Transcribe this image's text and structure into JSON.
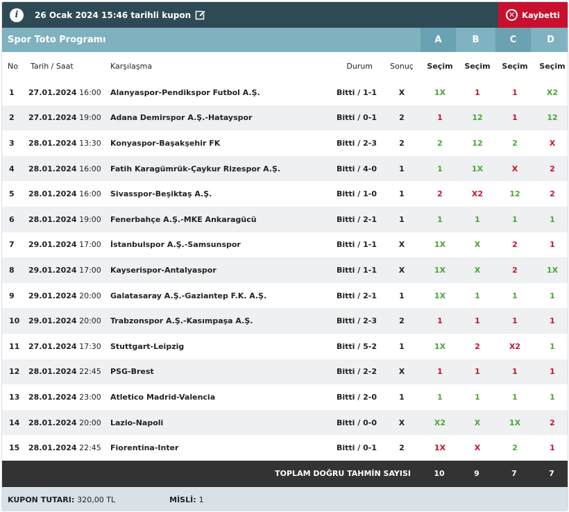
{
  "header": {
    "coupon_title": "26 Ocak 2024 15:46 tarihli kupon",
    "status_label": "Kaybetti",
    "status_color": "#c8102e"
  },
  "program": {
    "title": "Spor Toto Programı",
    "columns": [
      "A",
      "B",
      "C",
      "D"
    ]
  },
  "table_headers": {
    "no": "No",
    "date": "Tarih / Saat",
    "match": "Karşılaşma",
    "status": "Durum",
    "result": "Sonuç",
    "sel": "Seçim"
  },
  "rows": [
    {
      "no": "1",
      "date": "27.01.2024",
      "time": "16:00",
      "match": "Alanyaspor-Pendikspor Futbol A.Ş.",
      "status": "Bitti / 1-1",
      "result": "X",
      "sel": [
        "1X",
        "1",
        "1",
        "X2"
      ],
      "ok": [
        true,
        false,
        false,
        true
      ]
    },
    {
      "no": "2",
      "date": "27.01.2024",
      "time": "19:00",
      "match": "Adana Demirspor A.Ş.-Hatayspor",
      "status": "Bitti / 0-1",
      "result": "2",
      "sel": [
        "1",
        "12",
        "1",
        "12"
      ],
      "ok": [
        false,
        true,
        false,
        true
      ]
    },
    {
      "no": "3",
      "date": "28.01.2024",
      "time": "13:30",
      "match": "Konyaspor-Başakşehir FK",
      "status": "Bitti / 2-3",
      "result": "2",
      "sel": [
        "2",
        "12",
        "2",
        "X"
      ],
      "ok": [
        true,
        true,
        true,
        false
      ]
    },
    {
      "no": "4",
      "date": "28.01.2024",
      "time": "16:00",
      "match": "Fatih Karagümrük-Çaykur Rizespor A.Ş.",
      "status": "Bitti / 4-0",
      "result": "1",
      "sel": [
        "1",
        "1X",
        "X",
        "2"
      ],
      "ok": [
        true,
        true,
        false,
        false
      ]
    },
    {
      "no": "5",
      "date": "28.01.2024",
      "time": "16:00",
      "match": "Sivasspor-Beşiktaş A.Ş.",
      "status": "Bitti / 1-0",
      "result": "1",
      "sel": [
        "2",
        "X2",
        "12",
        "2"
      ],
      "ok": [
        false,
        false,
        true,
        false
      ]
    },
    {
      "no": "6",
      "date": "28.01.2024",
      "time": "19:00",
      "match": "Fenerbahçe A.Ş.-MKE Ankaragücü",
      "status": "Bitti / 2-1",
      "result": "1",
      "sel": [
        "1",
        "1",
        "1",
        "1"
      ],
      "ok": [
        true,
        true,
        true,
        true
      ]
    },
    {
      "no": "7",
      "date": "29.01.2024",
      "time": "17:00",
      "match": "İstanbulspor A.Ş.-Samsunspor",
      "status": "Bitti / 1-1",
      "result": "X",
      "sel": [
        "1X",
        "X",
        "2",
        "1"
      ],
      "ok": [
        true,
        true,
        false,
        false
      ]
    },
    {
      "no": "8",
      "date": "29.01.2024",
      "time": "17:00",
      "match": "Kayserispor-Antalyaspor",
      "status": "Bitti / 1-1",
      "result": "X",
      "sel": [
        "1X",
        "X",
        "2",
        "1X"
      ],
      "ok": [
        true,
        true,
        false,
        true
      ]
    },
    {
      "no": "9",
      "date": "29.01.2024",
      "time": "20:00",
      "match": "Galatasaray A.Ş.-Gaziantep F.K. A.Ş.",
      "status": "Bitti / 2-1",
      "result": "1",
      "sel": [
        "1X",
        "1",
        "1",
        "1"
      ],
      "ok": [
        true,
        true,
        true,
        true
      ]
    },
    {
      "no": "10",
      "date": "29.01.2024",
      "time": "20:00",
      "match": "Trabzonspor A.Ş.-Kasımpaşa A.Ş.",
      "status": "Bitti / 2-3",
      "result": "2",
      "sel": [
        "1",
        "1",
        "1",
        "1"
      ],
      "ok": [
        false,
        false,
        false,
        false
      ]
    },
    {
      "no": "11",
      "date": "27.01.2024",
      "time": "17:30",
      "match": "Stuttgart-Leipzig",
      "status": "Bitti / 5-2",
      "result": "1",
      "sel": [
        "1X",
        "2",
        "X2",
        "1"
      ],
      "ok": [
        true,
        false,
        false,
        true
      ]
    },
    {
      "no": "12",
      "date": "28.01.2024",
      "time": "22:45",
      "match": "PSG-Brest",
      "status": "Bitti / 2-2",
      "result": "X",
      "sel": [
        "1",
        "1",
        "1",
        "1"
      ],
      "ok": [
        false,
        false,
        false,
        false
      ]
    },
    {
      "no": "13",
      "date": "28.01.2024",
      "time": "23:00",
      "match": "Atletico Madrid-Valencia",
      "status": "Bitti / 2-0",
      "result": "1",
      "sel": [
        "1",
        "1",
        "1",
        "1"
      ],
      "ok": [
        true,
        true,
        true,
        true
      ]
    },
    {
      "no": "14",
      "date": "28.01.2024",
      "time": "20:00",
      "match": "Lazio-Napoli",
      "status": "Bitti / 0-0",
      "result": "X",
      "sel": [
        "X2",
        "X",
        "1X",
        "2"
      ],
      "ok": [
        true,
        true,
        true,
        false
      ]
    },
    {
      "no": "15",
      "date": "28.01.2024",
      "time": "22:45",
      "match": "Fiorentina-Inter",
      "status": "Bitti / 0-1",
      "result": "2",
      "sel": [
        "1X",
        "X",
        "2",
        "1"
      ],
      "ok": [
        false,
        false,
        true,
        false
      ]
    }
  ],
  "totals": {
    "label": "TOPLAM DOĞRU TAHMİN SAYISI",
    "values": [
      "10",
      "9",
      "7",
      "7"
    ]
  },
  "footer": {
    "amount_label": "KUPON TUTARI:",
    "amount_value": "320,00 TL",
    "misli_label": "MİSLİ:",
    "misli_value": "1"
  },
  "colors": {
    "correct": "#46a832",
    "wrong": "#c8102e",
    "topbar": "#2e4a55",
    "headbar": "#7fb1bf"
  }
}
